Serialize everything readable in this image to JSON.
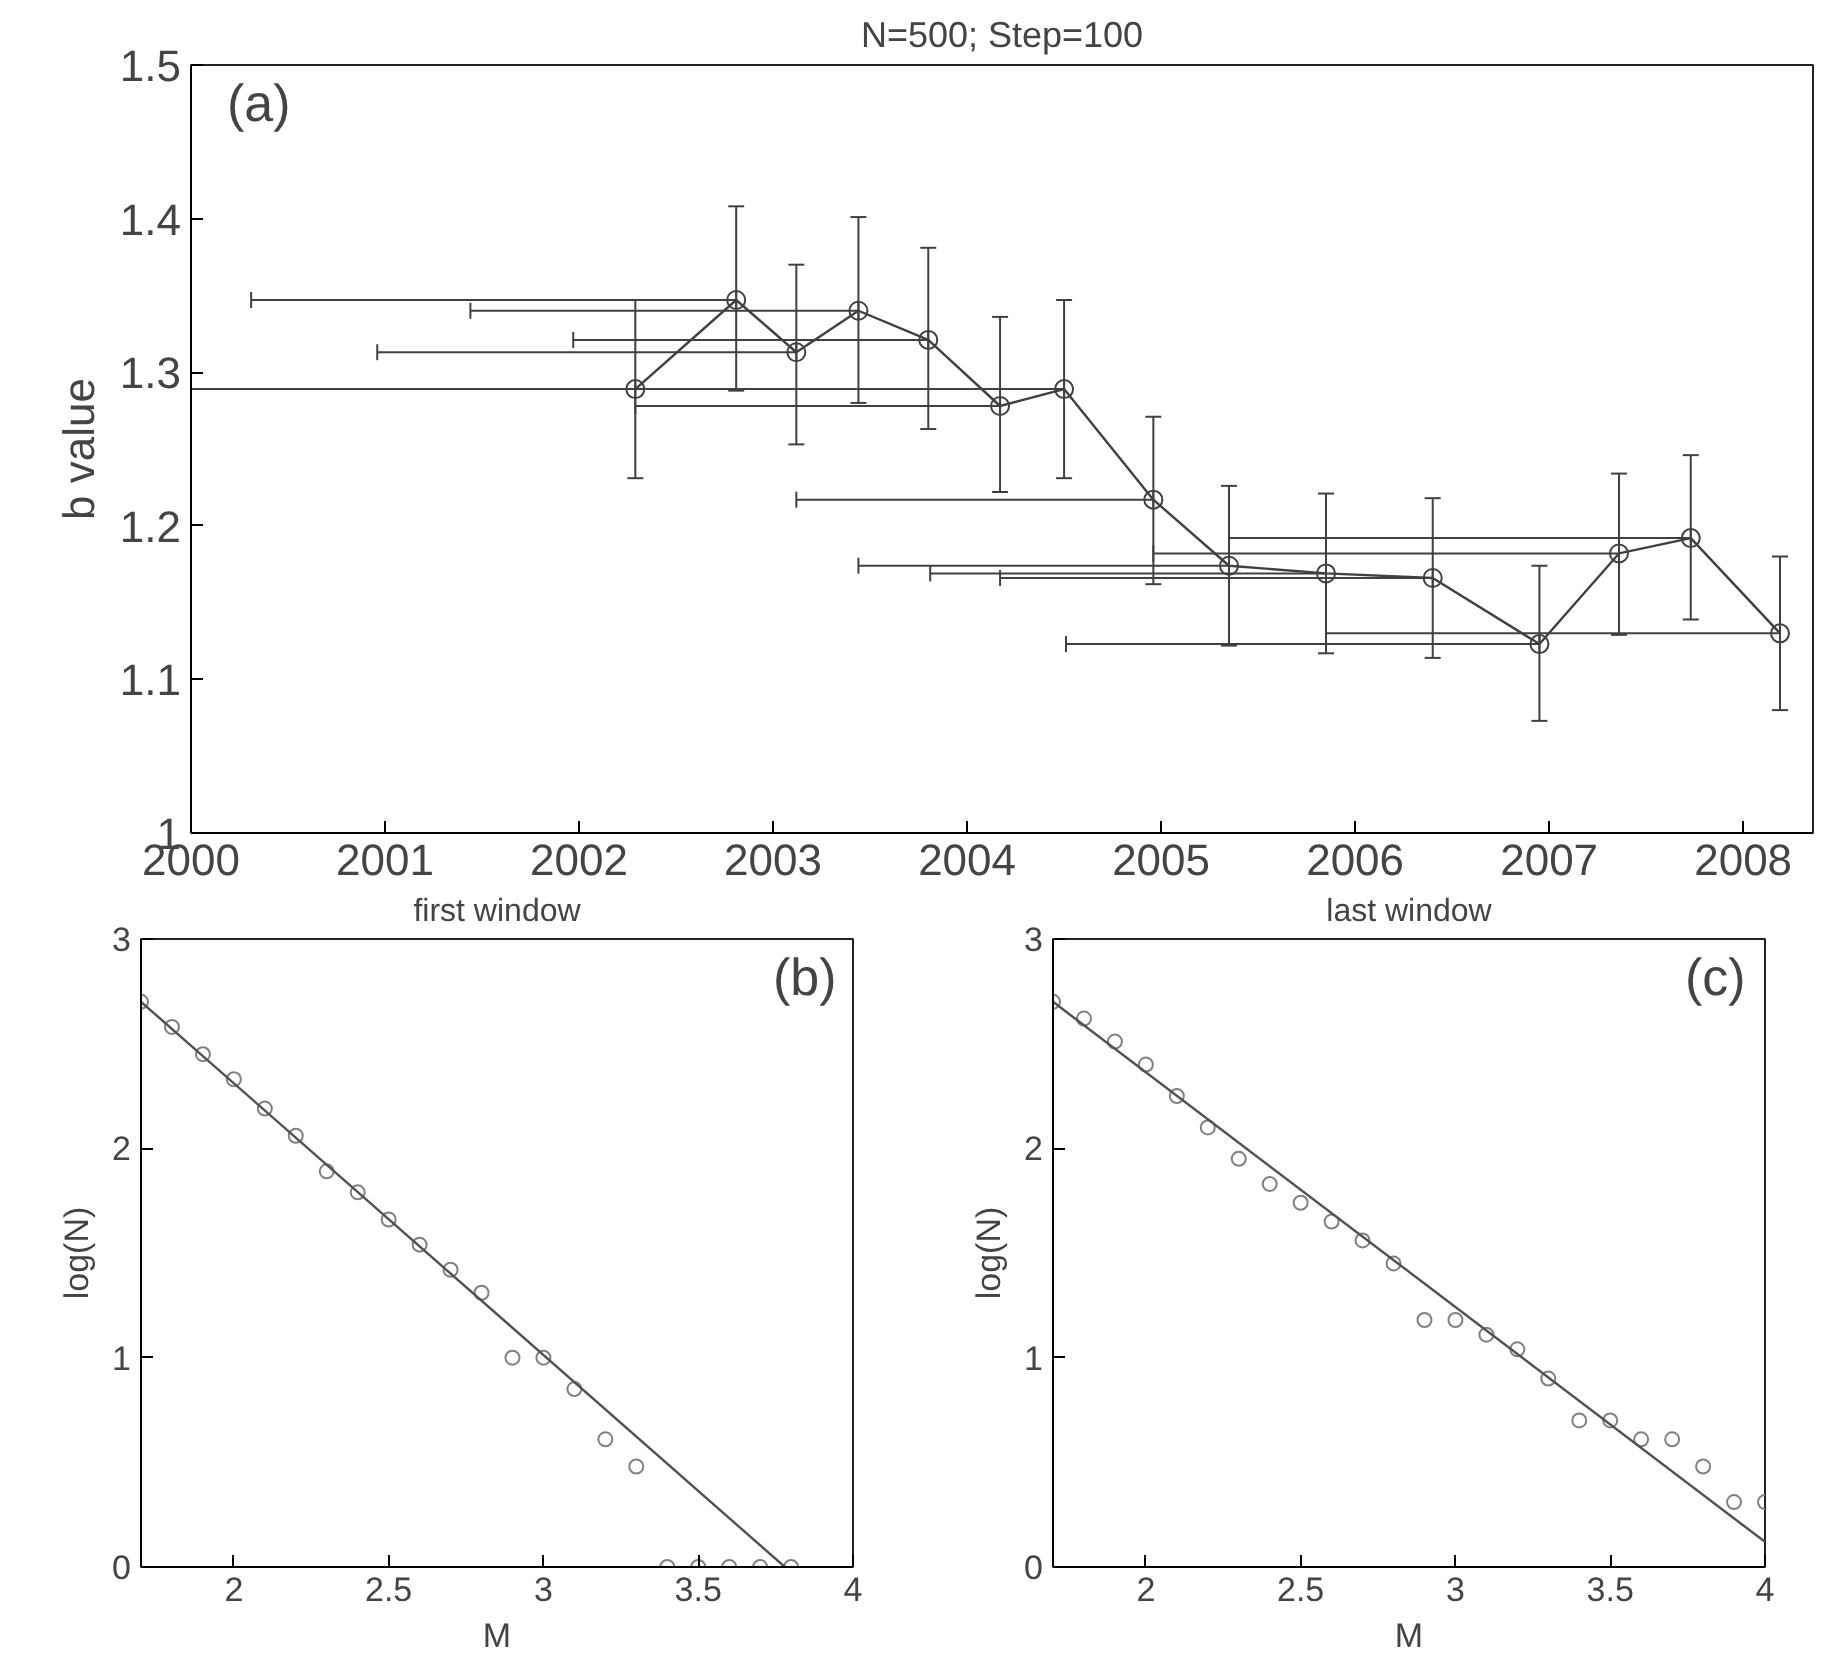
{
  "chart_data": [
    {
      "type": "line",
      "title": "N=500; Step=100",
      "ylabel": "b value",
      "annotations": [
        "(a)"
      ],
      "marker": "circle",
      "x": [
        2002.29,
        2002.81,
        2003.12,
        2003.44,
        2003.8,
        2004.17,
        2004.5,
        2004.96,
        2005.35,
        2005.85,
        2006.4,
        2006.95,
        2007.36,
        2007.73,
        2008.19
      ],
      "xlim": [
        2000,
        2008.36
      ],
      "xticks": [
        2000,
        2001,
        2002,
        2003,
        2004,
        2005,
        2006,
        2007,
        2008
      ],
      "ylim": [
        1,
        1.5
      ],
      "yticks": [
        1,
        1.1,
        1.2,
        1.3,
        1.4,
        1.5
      ],
      "series": [
        {
          "color": "#404040",
          "values": [
            1.289,
            1.347,
            1.313,
            1.34,
            1.321,
            1.278,
            1.289,
            1.217,
            1.174,
            1.169,
            1.166,
            1.123,
            1.182,
            1.192,
            1.13
          ],
          "errors": [
            [
              1.231,
              1.347
            ],
            [
              1.288,
              1.408
            ],
            [
              1.253,
              1.37
            ],
            [
              1.28,
              1.401
            ],
            [
              1.263,
              1.381
            ],
            [
              1.222,
              1.336
            ],
            [
              1.231,
              1.347
            ],
            [
              1.162,
              1.271
            ],
            [
              1.122,
              1.226
            ],
            [
              1.117,
              1.221
            ],
            [
              1.114,
              1.218
            ],
            [
              1.073,
              1.174
            ],
            [
              1.129,
              1.234
            ],
            [
              1.139,
              1.246
            ],
            [
              1.08,
              1.18
            ]
          ],
          "xerrors": [
            [
              2000.0,
              2002.29
            ],
            [
              2000.31,
              2002.81
            ],
            [
              2000.96,
              2003.12
            ],
            [
              2001.44,
              2003.44
            ],
            [
              2001.97,
              2003.8
            ],
            [
              2002.29,
              2004.17
            ],
            [
              2000.0,
              2004.5
            ],
            [
              2003.12,
              2004.96
            ],
            [
              2003.44,
              2005.35
            ],
            [
              2003.81,
              2005.85
            ],
            [
              2004.17,
              2006.4
            ],
            [
              2004.51,
              2006.95
            ],
            [
              2004.96,
              2007.36
            ],
            [
              2005.35,
              2007.73
            ],
            [
              2005.85,
              2008.19
            ]
          ]
        }
      ]
    },
    {
      "type": "scatter",
      "title": "first window",
      "xlabel": "M",
      "ylabel": "log(N)",
      "annotations": [
        "(b)"
      ],
      "marker": "circle",
      "xlim": [
        1.7,
        4
      ],
      "xticks": [
        2,
        2.5,
        3,
        3.5,
        4
      ],
      "ylim": [
        0,
        3
      ],
      "yticks": [
        0,
        1,
        2,
        3
      ],
      "series": [
        {
          "color": "#808080",
          "x": [
            1.7,
            1.8,
            1.9,
            2.0,
            2.1,
            2.2,
            2.3,
            2.4,
            2.5,
            2.6,
            2.7,
            2.8,
            2.9,
            3.0,
            3.1,
            3.2,
            3.3,
            3.4,
            3.5,
            3.6,
            3.7,
            3.8
          ],
          "values": [
            2.7,
            2.58,
            2.45,
            2.33,
            2.19,
            2.06,
            1.89,
            1.79,
            1.66,
            1.54,
            1.42,
            1.31,
            1.0,
            1.0,
            0.85,
            0.61,
            0.48,
            0,
            0,
            0,
            0,
            0
          ]
        },
        {
          "type": "line",
          "marker": "none",
          "color": "#505050",
          "x": [
            1.7,
            3.78
          ],
          "values": [
            2.7,
            0
          ]
        }
      ]
    },
    {
      "type": "scatter",
      "title": "last window",
      "xlabel": "M",
      "ylabel": "log(N)",
      "annotations": [
        "(c)"
      ],
      "marker": "circle",
      "xlim": [
        1.7,
        4
      ],
      "xticks": [
        2,
        2.5,
        3,
        3.5,
        4
      ],
      "ylim": [
        0,
        3
      ],
      "yticks": [
        0,
        1,
        2,
        3
      ],
      "series": [
        {
          "color": "#808080",
          "x": [
            1.7,
            1.8,
            1.9,
            2.0,
            2.1,
            2.2,
            2.3,
            2.4,
            2.5,
            2.6,
            2.7,
            2.8,
            2.9,
            3.0,
            3.1,
            3.2,
            3.3,
            3.4,
            3.5,
            3.6,
            3.7,
            3.8,
            3.9,
            4.0
          ],
          "values": [
            2.7,
            2.62,
            2.51,
            2.4,
            2.25,
            2.1,
            1.95,
            1.83,
            1.74,
            1.65,
            1.56,
            1.45,
            1.18,
            1.18,
            1.11,
            1.04,
            0.9,
            0.7,
            0.7,
            0.61,
            0.61,
            0.48,
            0.31,
            0.31
          ]
        },
        {
          "type": "line",
          "marker": "none",
          "color": "#505050",
          "x": [
            1.7,
            4.0
          ],
          "values": [
            2.7,
            0.12
          ]
        }
      ]
    }
  ]
}
